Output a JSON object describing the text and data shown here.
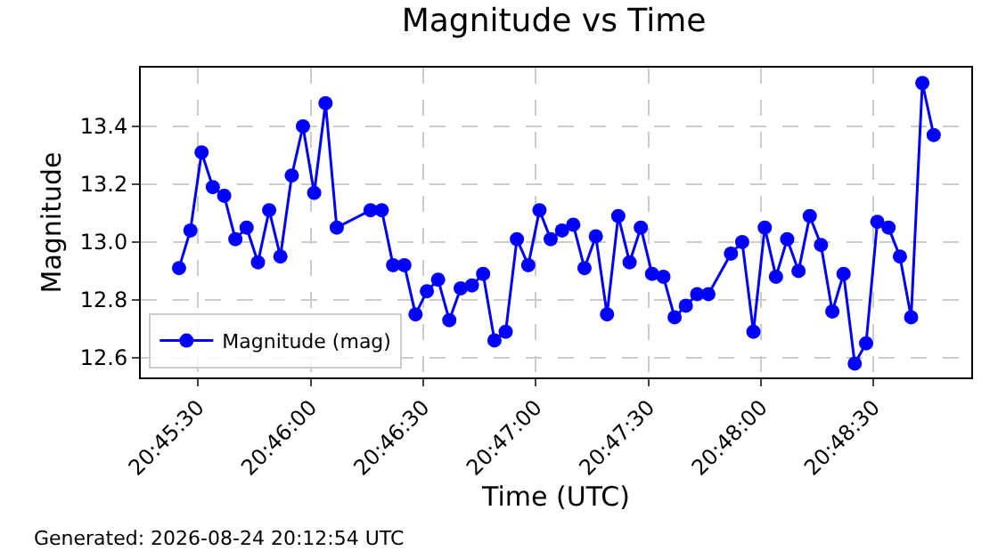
{
  "chart_data": {
    "type": "line",
    "title": "Magnitude vs Time",
    "xlabel": "Time (UTC)",
    "ylabel": "Magnitude",
    "annotations": [
      "Generated: 2026-08-24 20:12:54 UTC"
    ],
    "x": [
      20.75694,
      20.75778,
      20.75861,
      20.75944,
      20.76028,
      20.76111,
      20.76194,
      20.76278,
      20.76361,
      20.76444,
      20.76528,
      20.76611,
      20.76694,
      20.76778,
      20.76861,
      20.77111,
      20.77194,
      20.77278,
      20.77361,
      20.77444,
      20.77528,
      20.77611,
      20.77694,
      20.77778,
      20.77861,
      20.77944,
      20.78028,
      20.78111,
      20.78194,
      20.78278,
      20.78361,
      20.78444,
      20.78528,
      20.78611,
      20.78694,
      20.78778,
      20.78861,
      20.78944,
      20.79028,
      20.79111,
      20.79194,
      20.79278,
      20.79361,
      20.79444,
      20.79528,
      20.79611,
      20.79778,
      20.79861,
      20.79944,
      20.80028,
      20.80111,
      20.80194,
      20.80278,
      20.80361,
      20.80444,
      20.80528,
      20.80611,
      20.80694,
      20.80778,
      20.80861,
      20.80944,
      20.81028,
      20.81111,
      20.81194,
      20.81278
    ],
    "series": [
      {
        "name": "Magnitude (mag)",
        "color": "#0000ff",
        "values": [
          12.91,
          13.04,
          13.31,
          13.19,
          13.16,
          13.01,
          13.05,
          12.93,
          13.11,
          12.95,
          13.23,
          13.4,
          13.17,
          13.48,
          13.05,
          13.11,
          13.11,
          12.92,
          12.92,
          12.75,
          12.83,
          12.87,
          12.73,
          12.84,
          12.85,
          12.89,
          12.66,
          12.69,
          13.01,
          12.92,
          13.11,
          13.01,
          13.04,
          13.06,
          12.91,
          13.02,
          12.75,
          13.09,
          12.93,
          13.05,
          12.89,
          12.88,
          12.74,
          12.78,
          12.82,
          12.82,
          12.96,
          13.0,
          12.69,
          13.05,
          12.88,
          13.01,
          12.9,
          13.09,
          12.99,
          12.76,
          12.89,
          12.58,
          12.65,
          13.07,
          13.05,
          12.95,
          12.74,
          13.55,
          13.37
        ]
      }
    ],
    "xlim": [
      20.75411,
      20.81556
    ],
    "xticks": [
      {
        "value": 20.75833,
        "label": "20:45:30"
      },
      {
        "value": 20.76667,
        "label": "20:46:00"
      },
      {
        "value": 20.775,
        "label": "20:46:30"
      },
      {
        "value": 20.78333,
        "label": "20:47:00"
      },
      {
        "value": 20.79167,
        "label": "20:47:30"
      },
      {
        "value": 20.8,
        "label": "20:48:00"
      },
      {
        "value": 20.80833,
        "label": "20:48:30"
      }
    ],
    "ylim": [
      12.532,
      13.603
    ],
    "yticks": [
      12.6,
      12.8,
      {
        "value": 13,
        "label": "13.0"
      },
      13.2,
      13.4
    ],
    "grid": true,
    "legend": "bottom left",
    "marker": "circle",
    "line_style": "solid"
  }
}
